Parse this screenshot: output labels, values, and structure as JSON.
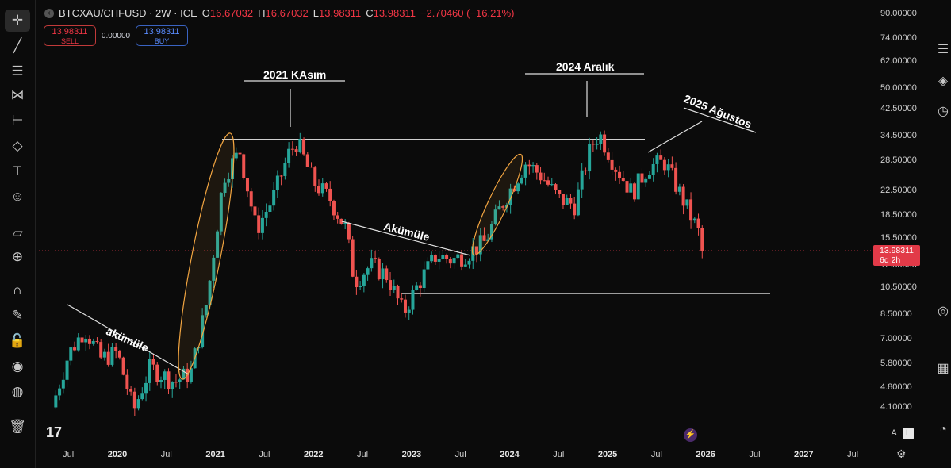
{
  "header": {
    "symbol": "BTCXAU/CHFUSD · 2W · ICE",
    "o_label": "O",
    "o_value": "16.67032",
    "h_label": "H",
    "h_value": "16.67032",
    "l_label": "L",
    "l_value": "13.98311",
    "c_label": "C",
    "c_value": "13.98311",
    "change": "−2.70460 (−16.21%)"
  },
  "trade": {
    "sell_price": "13.98311",
    "sell_label": "SELL",
    "spread": "0.00000",
    "buy_price": "13.98311",
    "buy_label": "BUY"
  },
  "current_price": {
    "value": "13.98311",
    "countdown": "6d 2h"
  },
  "logo_text": "17",
  "scale_buttons": {
    "auto": "A",
    "log": "L"
  },
  "colors": {
    "up": "#26a69a",
    "down": "#ef5350",
    "ellipse": "#f2a541",
    "accent": "#e23a48"
  },
  "toolbar_icons": [
    "crosshair-icon",
    "trendline-icon",
    "fib-icon",
    "pattern-icon",
    "measure-icon",
    "brush-icon",
    "text-icon",
    "emoji-icon",
    "ruler-icon",
    "zoom-icon",
    "magnet-icon",
    "lock-draw-icon",
    "lock-icon",
    "eye-icon",
    "globe-icon",
    "trash-icon"
  ],
  "right_icons": [
    "list-icon",
    "layers-icon",
    "alert-icon",
    "target-icon",
    "calendar-icon",
    "chat-icon"
  ],
  "chart_data": {
    "type": "candlestick",
    "scale": "log",
    "ylim": [
      3.7,
      95
    ],
    "yticks": [
      "90.00000",
      "74.00000",
      "62.00000",
      "50.00000",
      "42.50000",
      "34.50000",
      "28.50000",
      "22.50000",
      "18.50000",
      "15.50000",
      "12.50000",
      "10.50000",
      "8.50000",
      "7.00000",
      "5.80000",
      "4.80000",
      "4.10000"
    ],
    "xticks": [
      "Jul",
      "2020",
      "Jul",
      "2021",
      "Jul",
      "2022",
      "Jul",
      "2023",
      "Jul",
      "2024",
      "Jul",
      "2025",
      "Jul",
      "2026",
      "Jul",
      "2027",
      "Jul"
    ],
    "x_range": [
      "2019-03",
      "2027-10"
    ],
    "approx_close_path": [
      {
        "t": "2019-05",
        "v": 4.1
      },
      {
        "t": "2019-07",
        "v": 6.2
      },
      {
        "t": "2019-09",
        "v": 7.6
      },
      {
        "t": "2019-11",
        "v": 6.0
      },
      {
        "t": "2020-01",
        "v": 6.3
      },
      {
        "t": "2020-03",
        "v": 4.0
      },
      {
        "t": "2020-05",
        "v": 5.6
      },
      {
        "t": "2020-08",
        "v": 5.0
      },
      {
        "t": "2020-10",
        "v": 5.4
      },
      {
        "t": "2020-12",
        "v": 9.5
      },
      {
        "t": "2021-02",
        "v": 25.0
      },
      {
        "t": "2021-04",
        "v": 30.5
      },
      {
        "t": "2021-06",
        "v": 16.5
      },
      {
        "t": "2021-08",
        "v": 21.0
      },
      {
        "t": "2021-10",
        "v": 30.0
      },
      {
        "t": "2021-11",
        "v": 33.0
      },
      {
        "t": "2022-01",
        "v": 24.0
      },
      {
        "t": "2022-03",
        "v": 21.0
      },
      {
        "t": "2022-05",
        "v": 16.5
      },
      {
        "t": "2022-06",
        "v": 11.0
      },
      {
        "t": "2022-08",
        "v": 12.5
      },
      {
        "t": "2022-10",
        "v": 11.5
      },
      {
        "t": "2022-12",
        "v": 8.6
      },
      {
        "t": "2023-02",
        "v": 11.0
      },
      {
        "t": "2023-04",
        "v": 13.5
      },
      {
        "t": "2023-06",
        "v": 13.0
      },
      {
        "t": "2023-08",
        "v": 13.8
      },
      {
        "t": "2023-10",
        "v": 15.0
      },
      {
        "t": "2023-12",
        "v": 20.0
      },
      {
        "t": "2024-03",
        "v": 28.0
      },
      {
        "t": "2024-05",
        "v": 25.0
      },
      {
        "t": "2024-07",
        "v": 21.0
      },
      {
        "t": "2024-09",
        "v": 20.0
      },
      {
        "t": "2024-11",
        "v": 32.0
      },
      {
        "t": "2024-12",
        "v": 35.0
      },
      {
        "t": "2025-02",
        "v": 27.0
      },
      {
        "t": "2025-04",
        "v": 22.0
      },
      {
        "t": "2025-06",
        "v": 27.0
      },
      {
        "t": "2025-08",
        "v": 28.0
      },
      {
        "t": "2025-10",
        "v": 21.5
      },
      {
        "t": "2025-12",
        "v": 16.5
      },
      {
        "t": "2026-01",
        "v": 13.98
      }
    ],
    "annotations": [
      {
        "text": "akümüle"
      },
      {
        "text": "2021 KAsım"
      },
      {
        "text": "Akümüle"
      },
      {
        "text": "2024 Aralık"
      },
      {
        "text": "2025 Ağustos"
      }
    ],
    "levels": [
      {
        "value": 33.5,
        "style": "resistance"
      },
      {
        "value": 10.0,
        "style": "support"
      }
    ]
  }
}
